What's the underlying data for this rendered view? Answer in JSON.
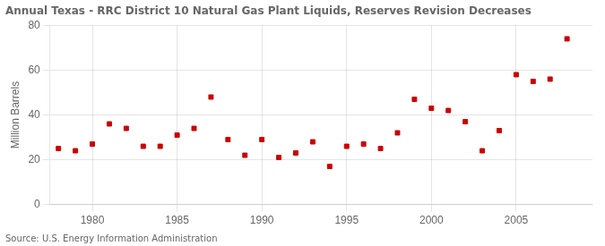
{
  "chart_data": {
    "type": "scatter",
    "title": "Annual Texas - RRC District 10 Natural Gas Plant Liquids, Reserves Revision Decreases",
    "ylabel": "Million Barrels",
    "annotations": [
      "Source: U.S. Energy Information Administration"
    ],
    "x": [
      1978,
      1979,
      1980,
      1981,
      1982,
      1983,
      1984,
      1985,
      1986,
      1987,
      1988,
      1989,
      1990,
      1991,
      1992,
      1993,
      1994,
      1995,
      1996,
      1997,
      1998,
      1999,
      2000,
      2001,
      2002,
      2003,
      2004,
      2005,
      2006,
      2007,
      2008
    ],
    "values": [
      25,
      24,
      27,
      36,
      34,
      26,
      26,
      31,
      34,
      48,
      29,
      22,
      29,
      21,
      23,
      28,
      17,
      26,
      27,
      25,
      32,
      47,
      43,
      42,
      37,
      24,
      33,
      58,
      55,
      56,
      74
    ],
    "color": "#cc0000",
    "marker": "square",
    "xlim": [
      1977.5,
      2009.5
    ],
    "xticks": [
      1980,
      1985,
      1990,
      1995,
      2000,
      2005
    ],
    "ylim": [
      0,
      80
    ],
    "yticks": [
      0,
      20,
      40,
      60,
      80
    ],
    "grid": true
  }
}
